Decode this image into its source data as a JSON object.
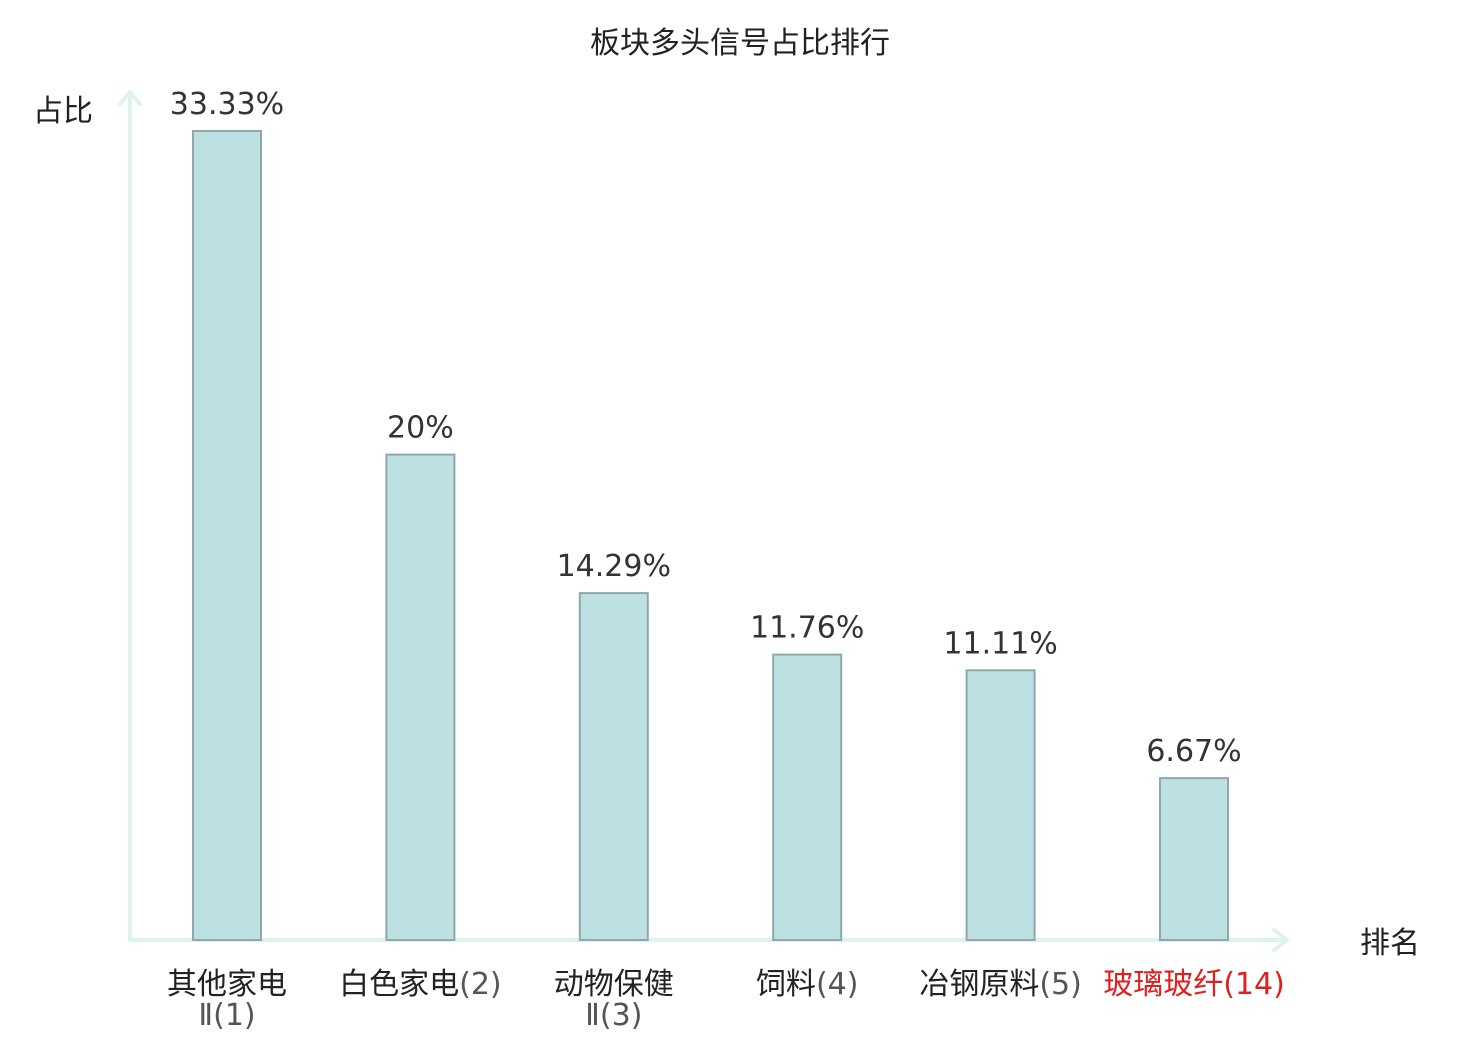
{
  "chart_data": {
    "type": "bar",
    "title": "板块多头信号占比排行",
    "ylabel": "占比",
    "xlabel": "排名",
    "ylim": [
      0,
      33.33
    ],
    "grid": false,
    "colors": {
      "bar_fill": "#bde0e2",
      "bar_stroke": "#8fa9ab",
      "axis": "#e0f2f0",
      "value_text": "#333333",
      "label_text": "#222222",
      "rank_text": "#555555",
      "highlight": "#e0201f"
    },
    "categories": [
      {
        "name": "其他家电",
        "rank": "Ⅱ(1)",
        "name_line": 1,
        "rank_line": 2,
        "highlight": false
      },
      {
        "name": "白色家电",
        "rank": "(2)",
        "name_line": 1,
        "rank_line": 1,
        "highlight": false
      },
      {
        "name": "动物保健",
        "rank": "Ⅱ(3)",
        "name_line": 1,
        "rank_line": 2,
        "highlight": false
      },
      {
        "name": "饲料",
        "rank": "(4)",
        "name_line": 1,
        "rank_line": 1,
        "highlight": false
      },
      {
        "name": "冶钢原料",
        "rank": "(5)",
        "name_line": 1,
        "rank_line": 1,
        "highlight": false
      },
      {
        "name": "玻璃玻纤",
        "rank": "(14)",
        "name_line": 1,
        "rank_line": 1,
        "highlight": true
      }
    ],
    "values": [
      33.33,
      20,
      14.29,
      11.76,
      11.11,
      6.67
    ],
    "value_labels": [
      "33.33%",
      "20%",
      "14.29%",
      "11.76%",
      "11.11%",
      "6.67%"
    ]
  }
}
